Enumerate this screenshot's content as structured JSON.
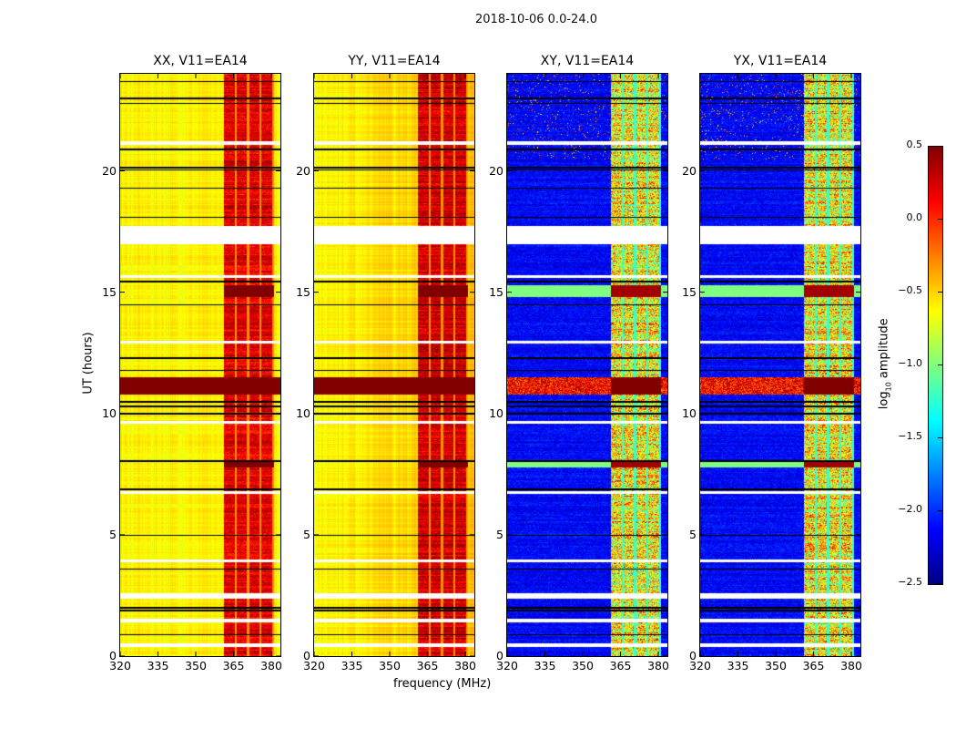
{
  "chart_data": [
    {
      "type": "heatmap",
      "title": "XX, V11=EA14",
      "polarization": "XX",
      "xlabel": "frequency (MHz)",
      "ylabel": "UT (hours)",
      "xlim": [
        320,
        383.6
      ],
      "ylim": [
        0,
        24
      ],
      "xticks": [
        320,
        335,
        350,
        365,
        380
      ],
      "yticks": [
        0,
        5,
        10,
        15,
        20
      ],
      "background_log_amp": -0.6,
      "signal_band_mhz": [
        361,
        381
      ],
      "signal_log_amp": 0.2
    },
    {
      "type": "heatmap",
      "title": "YY, V11=EA14",
      "polarization": "YY",
      "xlabel": "frequency (MHz)",
      "ylabel": "",
      "xlim": [
        320,
        383.6
      ],
      "ylim": [
        0,
        24
      ],
      "xticks": [
        320,
        335,
        350,
        365,
        380
      ],
      "yticks": [
        0,
        5,
        10,
        15,
        20
      ],
      "background_log_amp": -0.45,
      "signal_band_mhz": [
        361,
        381
      ],
      "signal_log_amp": 0.25
    },
    {
      "type": "heatmap",
      "title": "XY, V11=EA14",
      "polarization": "XY",
      "xlabel": "frequency (MHz)",
      "ylabel": "",
      "xlim": [
        320,
        383.6
      ],
      "ylim": [
        0,
        24
      ],
      "xticks": [
        320,
        335,
        350,
        365,
        380
      ],
      "yticks": [
        0,
        5,
        10,
        15,
        20
      ],
      "background_log_amp": -2.2,
      "signal_band_mhz": [
        361,
        381
      ],
      "signal_log_amp": -0.6
    },
    {
      "type": "heatmap",
      "title": "YX, V11=EA14",
      "polarization": "YX",
      "xlabel": "frequency (MHz)",
      "ylabel": "",
      "xlim": [
        320,
        383.6
      ],
      "ylim": [
        0,
        24
      ],
      "xticks": [
        320,
        335,
        350,
        365,
        380
      ],
      "yticks": [
        0,
        5,
        10,
        15,
        20
      ],
      "background_log_amp": -2.2,
      "signal_band_mhz": [
        361,
        381
      ],
      "signal_log_amp": -0.6
    }
  ],
  "suptitle": "2018-10-06 0.0-24.0",
  "xlabel_shared": "frequency (MHz)",
  "ylabel_shared": "UT (hours)",
  "colorbar": {
    "label_prefix": "log",
    "label_sub": "10",
    "label_suffix": " amplitude",
    "colormap": "jet",
    "range": [
      -2.5,
      0.5
    ],
    "ticks": [
      0.5,
      0.0,
      -0.5,
      -1.0,
      -1.5,
      -2.0,
      -2.5
    ],
    "tick_labels": [
      "0.5",
      "0.0",
      "−0.5",
      "−1.0",
      "−1.5",
      "−2.0",
      "−2.5"
    ]
  },
  "flagged_hours": [
    [
      0.4,
      0.55
    ],
    [
      1.4,
      1.55
    ],
    [
      2.4,
      2.6
    ],
    [
      17.0,
      17.75
    ],
    [
      15.6,
      15.7
    ],
    [
      12.9,
      13.0
    ],
    [
      9.6,
      9.7
    ],
    [
      6.7,
      6.8
    ],
    [
      3.9,
      4.0
    ],
    [
      21.1,
      21.25
    ]
  ],
  "dark_lines_hours": [
    0.9,
    1.9,
    2.0,
    3.6,
    5.0,
    6.9,
    8.05,
    10.0,
    10.3,
    10.5,
    11.8,
    12.3,
    14.5,
    15.45,
    18.1,
    19.3,
    20.05,
    20.15,
    20.9,
    22.8,
    23.0,
    23.7
  ],
  "strong_rows_hours": [
    [
      10.8,
      11.5
    ],
    [
      7.8,
      8.1
    ],
    [
      14.8,
      15.3
    ]
  ]
}
